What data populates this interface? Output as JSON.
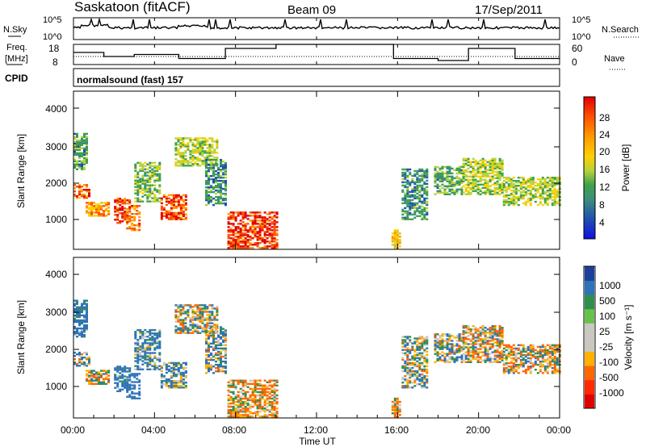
{
  "header": {
    "station": "Saskatoon (fitACF)",
    "beam": "Beam 09",
    "date": "17/Sep/2011"
  },
  "noise_panel": {
    "left_label": "N.Sky",
    "right_label": "N.Search",
    "left_ticks": [
      "10^5",
      "10^0"
    ],
    "right_ticks": [
      "10^5",
      "10^0"
    ]
  },
  "freq_panel": {
    "left_label_1": "Freq.",
    "left_label_2": "[MHz]",
    "left_ticks": [
      "18",
      "8"
    ],
    "right_label": "Nave",
    "right_ticks": [
      "60",
      "0"
    ]
  },
  "cpid_panel": {
    "label": "CPID",
    "mode_text": "normalsound (fast) 157"
  },
  "power_panel": {
    "ylabel": "Slant Range [km]",
    "yticks": [
      "4000",
      "3000",
      "2000",
      "1000"
    ],
    "colorbar_label": "Power [dB]",
    "colorbar_ticks": [
      "28",
      "24",
      "20",
      "16",
      "12",
      "8",
      "4"
    ],
    "colorbar_colors": [
      "#e00000",
      "#ff5000",
      "#ff9a00",
      "#ffd000",
      "#b6d23a",
      "#3fa24a",
      "#3d8f7a",
      "#1f4fb0",
      "#1010e0"
    ]
  },
  "velocity_panel": {
    "ylabel": "Slant Range [km]",
    "yticks": [
      "4000",
      "3000",
      "2000",
      "1000"
    ],
    "colorbar_label": "Velocity [m s⁻¹]",
    "colorbar_ticks": [
      "1000",
      "500",
      "100",
      "25",
      "-25",
      "-100",
      "-500",
      "-1000"
    ],
    "colorbar_colors": [
      "#1d3f9c",
      "#2f73b9",
      "#2f8f4f",
      "#66c24a",
      "#c8c8c0",
      "#c8c8c0",
      "#ffb000",
      "#ff6600",
      "#ff2a00",
      "#e00000"
    ]
  },
  "xaxis": {
    "label": "Time UT",
    "ticks": [
      "00:00",
      "04:00",
      "08:00",
      "12:00",
      "16:00",
      "20:00",
      "00:00"
    ]
  },
  "chart_data": {
    "type": "heatmap",
    "title": "Saskatoon (fitACF)",
    "subtitle": "Beam 09 17/Sep/2011",
    "xlabel": "Time UT",
    "xlim_hours": [
      0,
      24
    ],
    "ylabel": "Slant Range [km]",
    "ylim_km": [
      180,
      4600
    ],
    "power_colorbar_db": [
      4,
      8,
      12,
      16,
      20,
      24,
      28
    ],
    "velocity_colorbar_ms": [
      -1000,
      -500,
      -100,
      -25,
      25,
      100,
      500,
      1000
    ],
    "frequency_mhz_steps": [
      {
        "start": 0.0,
        "end": 1.5,
        "freq": 14
      },
      {
        "start": 1.5,
        "end": 3.0,
        "freq": 12
      },
      {
        "start": 3.0,
        "end": 5.2,
        "freq": 13
      },
      {
        "start": 5.2,
        "end": 7.5,
        "freq": 11
      },
      {
        "start": 7.5,
        "end": 10.0,
        "freq": 16
      },
      {
        "start": 10.0,
        "end": 15.8,
        "freq": 18
      },
      {
        "start": 15.8,
        "end": 18.0,
        "freq": 11
      },
      {
        "start": 18.0,
        "end": 19.5,
        "freq": 10
      },
      {
        "start": 19.5,
        "end": 21.8,
        "freq": 16
      },
      {
        "start": 21.8,
        "end": 24.0,
        "freq": 11
      }
    ],
    "scatter_regions": [
      {
        "t_start": 0.0,
        "t_end": 0.6,
        "r_start": 2400,
        "r_end": 3400,
        "power_db": 12,
        "velocity_ms": 200
      },
      {
        "t_start": 0.0,
        "t_end": 0.8,
        "r_start": 1600,
        "r_end": 2000,
        "power_db": 26,
        "velocity_ms": 25
      },
      {
        "t_start": 0.6,
        "t_end": 1.7,
        "r_start": 1100,
        "r_end": 1500,
        "power_db": 22,
        "velocity_ms": -25
      },
      {
        "t_start": 2.0,
        "t_end": 2.8,
        "r_start": 900,
        "r_end": 1600,
        "power_db": 28,
        "velocity_ms": 200
      },
      {
        "t_start": 2.6,
        "t_end": 3.3,
        "r_start": 700,
        "r_end": 1400,
        "power_db": 24,
        "velocity_ms": 300
      },
      {
        "t_start": 3.0,
        "t_end": 4.3,
        "r_start": 1500,
        "r_end": 2600,
        "power_db": 14,
        "velocity_ms": 150
      },
      {
        "t_start": 4.3,
        "t_end": 5.6,
        "r_start": 1000,
        "r_end": 1700,
        "power_db": 27,
        "velocity_ms": 100
      },
      {
        "t_start": 5.0,
        "t_end": 7.1,
        "r_start": 2500,
        "r_end": 3300,
        "power_db": 16,
        "velocity_ms": 25
      },
      {
        "t_start": 6.5,
        "t_end": 7.5,
        "r_start": 1400,
        "r_end": 2700,
        "power_db": 10,
        "velocity_ms": 60
      },
      {
        "t_start": 7.6,
        "t_end": 10.0,
        "r_start": 200,
        "r_end": 1200,
        "power_db": 28,
        "velocity_ms": -100
      },
      {
        "t_start": 15.7,
        "t_end": 16.1,
        "r_start": 200,
        "r_end": 700,
        "power_db": 20,
        "velocity_ms": -100
      },
      {
        "t_start": 16.2,
        "t_end": 17.5,
        "r_start": 1000,
        "r_end": 2400,
        "power_db": 10,
        "velocity_ms": 25
      },
      {
        "t_start": 17.8,
        "t_end": 19.2,
        "r_start": 1700,
        "r_end": 2500,
        "power_db": 12,
        "velocity_ms": 25
      },
      {
        "t_start": 19.2,
        "t_end": 21.2,
        "r_start": 1700,
        "r_end": 2700,
        "power_db": 16,
        "velocity_ms": -25
      },
      {
        "t_start": 21.2,
        "t_end": 24.0,
        "r_start": 1400,
        "r_end": 2200,
        "power_db": 16,
        "velocity_ms": -25
      }
    ]
  }
}
